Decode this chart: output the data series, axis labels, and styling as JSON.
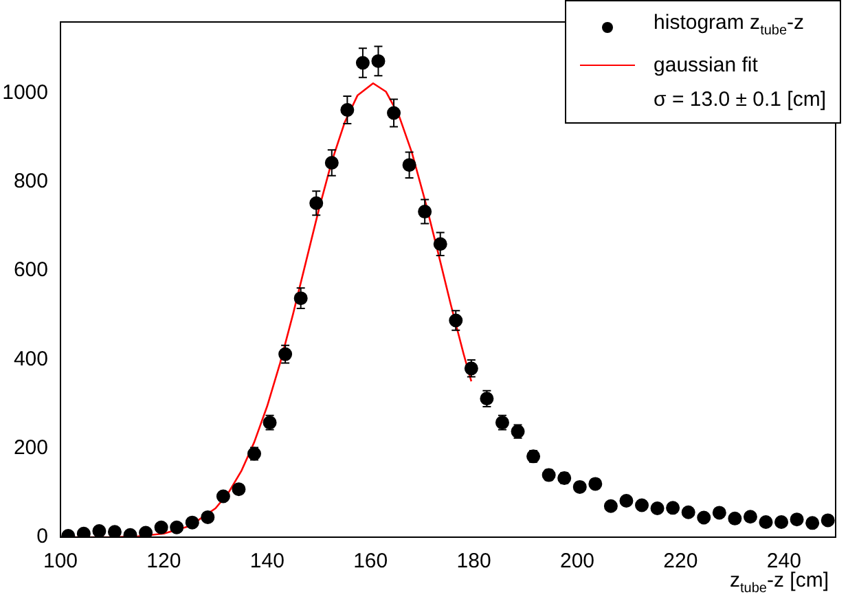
{
  "chart_data": {
    "type": "scatter",
    "xlabel": "z$_{tube}$-z [cm]",
    "annotations": [
      "σ = 13.0  ± 0.1  [cm]"
    ],
    "xlim": [
      100,
      250
    ],
    "xticks": [
      100,
      120,
      140,
      160,
      180,
      200,
      220,
      240
    ],
    "ylim": [
      0,
      1160
    ],
    "yticks": [
      0,
      200,
      400,
      600,
      800,
      1000
    ],
    "grid": false,
    "legend": "top right",
    "marker": "circle",
    "series": [
      {
        "name": "histogram z$_{tube}$-z",
        "color": "#000000",
        "x": [
          101.5,
          104.5,
          107.5,
          110.5,
          113.5,
          116.5,
          119.5,
          122.5,
          125.5,
          128.5,
          131.5,
          134.5,
          137.5,
          140.5,
          143.5,
          146.5,
          149.5,
          152.5,
          155.5,
          158.5,
          161.5,
          164.5,
          167.5,
          170.5,
          173.5,
          176.5,
          179.5,
          182.5,
          185.5,
          188.5,
          191.5,
          194.5,
          197.5,
          200.5,
          203.5,
          206.5,
          209.5,
          212.5,
          215.5,
          218.5,
          221.5,
          224.5,
          227.5,
          230.5,
          233.5,
          236.5,
          239.5,
          242.5,
          245.5,
          248.5
        ],
        "values": [
          3,
          8,
          14,
          12,
          5,
          10,
          22,
          22,
          33,
          45,
          92,
          108,
          188,
          258,
          412,
          538,
          752,
          843,
          962,
          1068,
          1072,
          955,
          838,
          733,
          660,
          488,
          380,
          312,
          258,
          238,
          182,
          140,
          133,
          113,
          120,
          70,
          82,
          72,
          65,
          66,
          56,
          44,
          55,
          42,
          46,
          34,
          34,
          40,
          32,
          38
        ],
        "errors": [
          null,
          null,
          null,
          null,
          null,
          null,
          null,
          null,
          null,
          null,
          null,
          null,
          14,
          16,
          20,
          23,
          27,
          29,
          31,
          33,
          33,
          31,
          29,
          27,
          26,
          22,
          19,
          18,
          16,
          15,
          13,
          12,
          12,
          11,
          11,
          null,
          null,
          null,
          null,
          null,
          null,
          null,
          null,
          null,
          null,
          null,
          null,
          null,
          null,
          null
        ]
      },
      {
        "name": "gaussian fit",
        "type": "line",
        "color": "#ff0000",
        "marker": "none",
        "x": [
          100,
          105,
          110,
          115,
          120,
          125,
          130,
          132.5,
          135,
          137.5,
          140,
          142.5,
          145,
          147.5,
          150,
          152.5,
          155,
          157.5,
          160.5,
          163,
          165.5,
          168,
          170.5,
          173,
          175.5,
          178,
          179.5
        ],
        "values": [
          0,
          0,
          0,
          2,
          8,
          25,
          65,
          100,
          149,
          214,
          295,
          392,
          502,
          620,
          738,
          846,
          934,
          995,
          1022,
          1003,
          949,
          866,
          760,
          644,
          525,
          413,
          351
        ]
      }
    ]
  }
}
